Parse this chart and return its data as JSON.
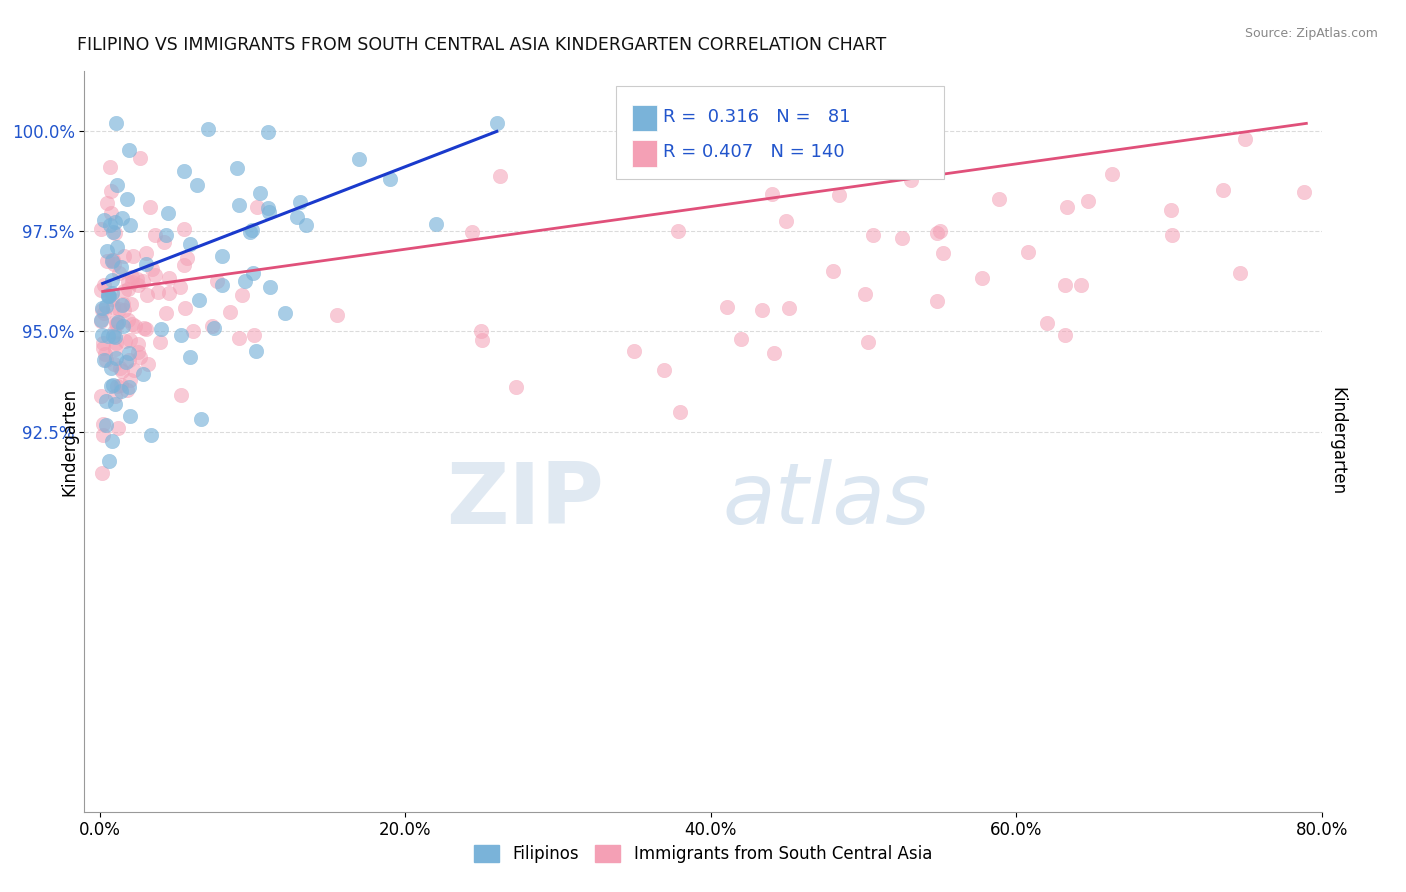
{
  "title": "FILIPINO VS IMMIGRANTS FROM SOUTH CENTRAL ASIA KINDERGARTEN CORRELATION CHART",
  "source_text": "Source: ZipAtlas.com",
  "ylabel": "Kindergarten",
  "xlim": [
    -1.0,
    80.0
  ],
  "ylim": [
    83.0,
    101.5
  ],
  "yticks": [
    92.5,
    95.0,
    97.5,
    100.0
  ],
  "ytick_labels": [
    "92.5%",
    "95.0%",
    "97.5%",
    "100.0%"
  ],
  "xticks": [
    0.0,
    20.0,
    40.0,
    60.0,
    80.0
  ],
  "xtick_labels": [
    "0.0%",
    "20.0%",
    "40.0%",
    "60.0%",
    "80.0%"
  ],
  "blue_color": "#7ab3d9",
  "pink_color": "#f4a0b5",
  "blue_line_color": "#1a3acc",
  "pink_line_color": "#e0507a",
  "legend_text_color": "#2255cc",
  "R_blue": 0.316,
  "N_blue": 81,
  "R_pink": 0.407,
  "N_pink": 140,
  "watermark_zip": "ZIP",
  "watermark_atlas": "atlas",
  "legend_label_blue": "Filipinos",
  "legend_label_pink": "Immigrants from South Central Asia",
  "blue_line_x0": 0.2,
  "blue_line_y0": 96.2,
  "blue_line_x1": 26.0,
  "blue_line_y1": 100.0,
  "pink_line_x0": 0.2,
  "pink_line_y0": 96.0,
  "pink_line_x1": 79.0,
  "pink_line_y1": 100.2
}
